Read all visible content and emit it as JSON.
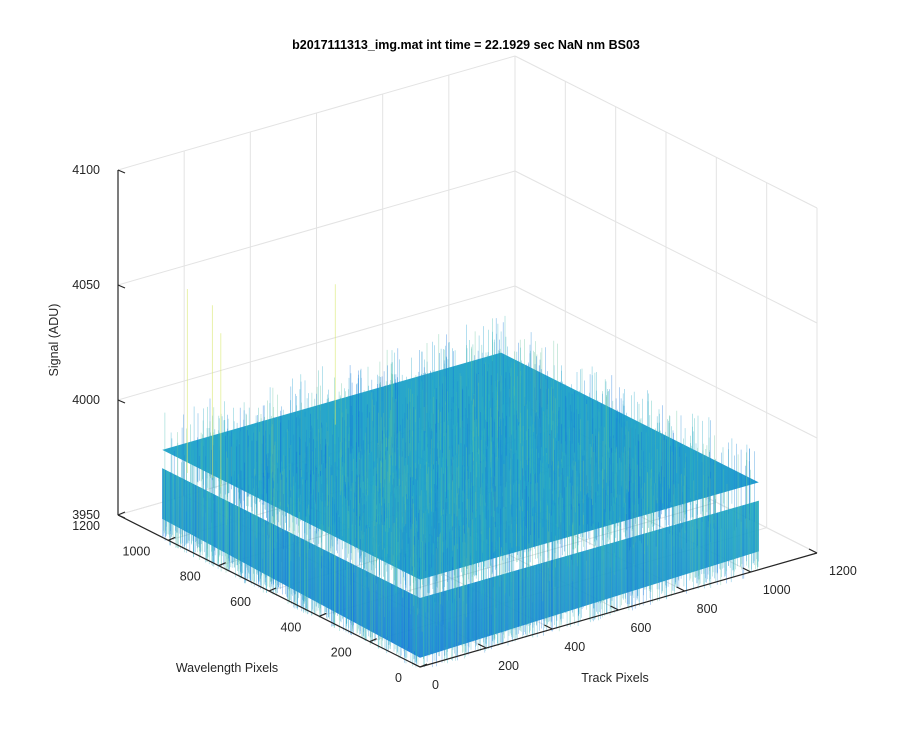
{
  "chart_data": {
    "type": "surface-3d",
    "title": "b2017111313_img.mat int time = 22.1929 sec  NaN nm BS03",
    "xlabel": "Track Pixels",
    "ylabel": "Wavelength Pixels",
    "zlabel": "Signal (ADU)",
    "xlim": [
      0,
      1200
    ],
    "ylim": [
      0,
      1200
    ],
    "zlim": [
      3950,
      4100
    ],
    "x_ticks": [
      "0",
      "200",
      "400",
      "600",
      "800",
      "1000",
      "1200"
    ],
    "y_ticks": [
      "0",
      "200",
      "400",
      "600",
      "800",
      "1000",
      "1200"
    ],
    "z_ticks": [
      "3950",
      "4000",
      "4050",
      "4100"
    ],
    "data_extent": {
      "x": [
        0,
        1024
      ],
      "y": [
        0,
        1024
      ]
    },
    "signal_baseline": 3980,
    "signal_noise_range": [
      3960,
      4035
    ],
    "grid": true,
    "colormap": "parula"
  }
}
